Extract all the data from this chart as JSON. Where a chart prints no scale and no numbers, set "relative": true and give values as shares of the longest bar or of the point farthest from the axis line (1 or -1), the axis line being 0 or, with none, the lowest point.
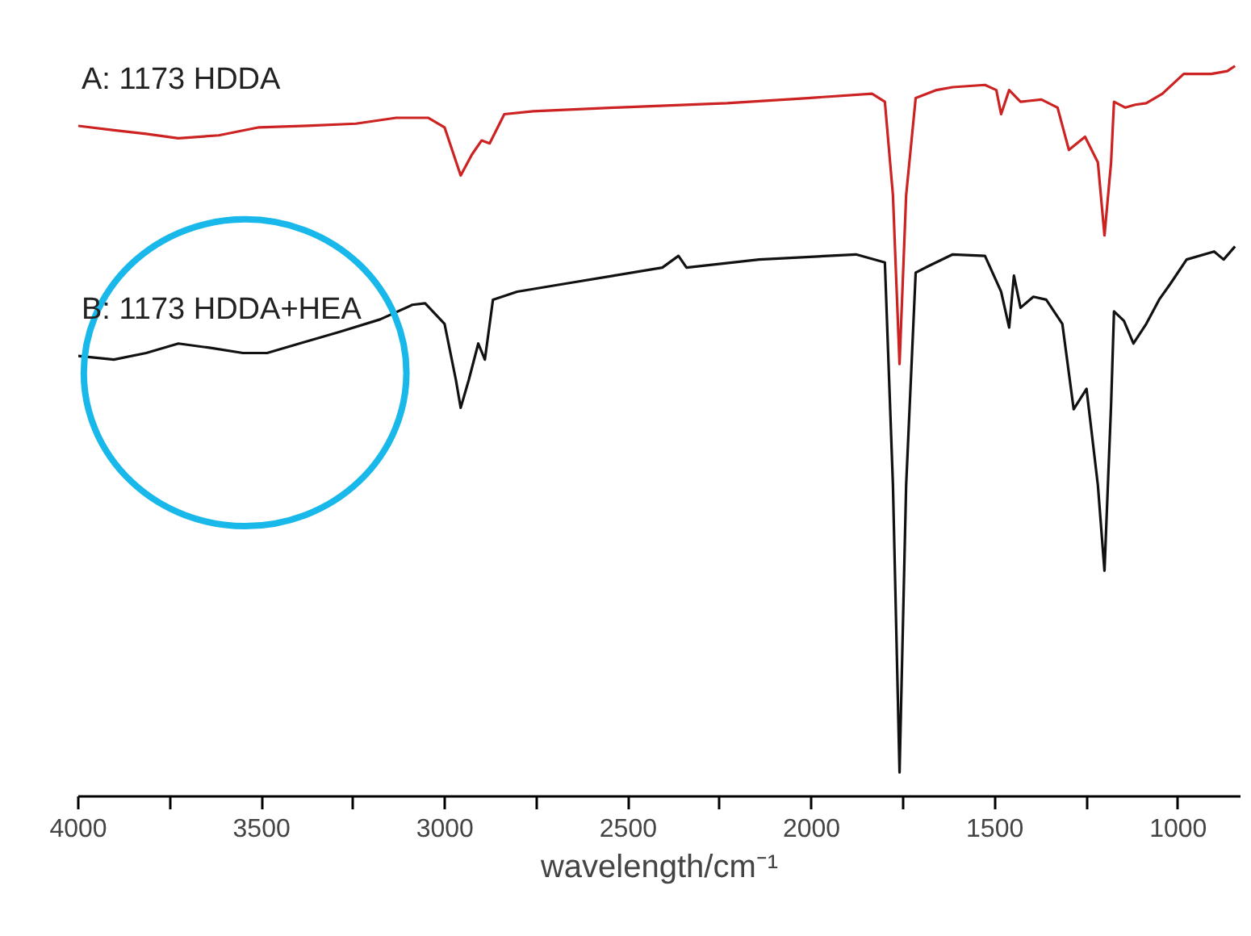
{
  "chart_data": {
    "type": "line",
    "relative": true,
    "xlabel": "wavelength/cm⁻¹",
    "xlim": [
      4000,
      830
    ],
    "xticks": [
      4000,
      {
        "value": 3750,
        "label": null
      },
      3500,
      {
        "value": 3250,
        "label": null
      },
      3000,
      {
        "value": 2750,
        "label": null
      },
      2500,
      {
        "value": 2250,
        "label": null
      },
      2000,
      {
        "value": 1750,
        "label": null
      },
      1500,
      {
        "value": 1250,
        "label": null
      },
      1000
    ],
    "tick_labels": "x",
    "grid": false,
    "legend": false,
    "marker": "none",
    "line_style": "solid",
    "series": [
      {
        "name": "A: 1173 HDDA",
        "color": "#cc2222",
        "x": [
          4000,
          3903,
          3815,
          3727,
          3617,
          3507,
          3375,
          3243,
          3133,
          3045,
          3001,
          2957,
          2926,
          2900,
          2878,
          2838,
          2759,
          2539,
          2231,
          2011,
          1835,
          1800,
          1778,
          1760,
          1742,
          1716,
          1659,
          1615,
          1527,
          1496,
          1483,
          1461,
          1430,
          1373,
          1329,
          1298,
          1254,
          1219,
          1201,
          1183,
          1175,
          1144,
          1117,
          1087,
          1043,
          985,
          910,
          866,
          845
        ],
        "values": [
          0.918,
          0.912,
          0.907,
          0.901,
          0.905,
          0.916,
          0.918,
          0.921,
          0.929,
          0.929,
          0.916,
          0.85,
          0.879,
          0.898,
          0.894,
          0.934,
          0.938,
          0.943,
          0.949,
          0.956,
          0.962,
          0.951,
          0.823,
          0.592,
          0.823,
          0.956,
          0.967,
          0.971,
          0.974,
          0.967,
          0.934,
          0.967,
          0.951,
          0.954,
          0.943,
          0.885,
          0.903,
          0.868,
          0.768,
          0.868,
          0.951,
          0.943,
          0.947,
          0.949,
          0.962,
          0.989,
          0.989,
          0.993,
          1.0
        ]
      },
      {
        "name": "B: 1173 HDDA+HEA",
        "color": "#111111",
        "x": [
          4000,
          3903,
          3815,
          3727,
          3639,
          3551,
          3485,
          3397,
          3287,
          3177,
          3089,
          3054,
          3001,
          2970,
          2957,
          2935,
          2909,
          2891,
          2869,
          2803,
          2671,
          2539,
          2407,
          2363,
          2341,
          2143,
          1879,
          1800,
          1778,
          1760,
          1742,
          1716,
          1681,
          1615,
          1527,
          1483,
          1461,
          1448,
          1430,
          1395,
          1360,
          1316,
          1285,
          1250,
          1219,
          1201,
          1183,
          1175,
          1148,
          1122,
          1087,
          1052,
          1021,
          977,
          902,
          876,
          845
        ],
        "values": [
          0.603,
          0.598,
          0.607,
          0.62,
          0.614,
          0.607,
          0.607,
          0.62,
          0.636,
          0.653,
          0.673,
          0.675,
          0.647,
          0.57,
          0.532,
          0.57,
          0.62,
          0.598,
          0.68,
          0.691,
          0.702,
          0.713,
          0.724,
          0.74,
          0.724,
          0.735,
          0.742,
          0.731,
          0.426,
          0.033,
          0.426,
          0.717,
          0.726,
          0.742,
          0.74,
          0.691,
          0.642,
          0.713,
          0.669,
          0.684,
          0.68,
          0.647,
          0.53,
          0.558,
          0.426,
          0.309,
          0.536,
          0.664,
          0.651,
          0.62,
          0.647,
          0.68,
          0.702,
          0.735,
          0.746,
          0.735,
          0.753
        ]
      }
    ]
  }
}
